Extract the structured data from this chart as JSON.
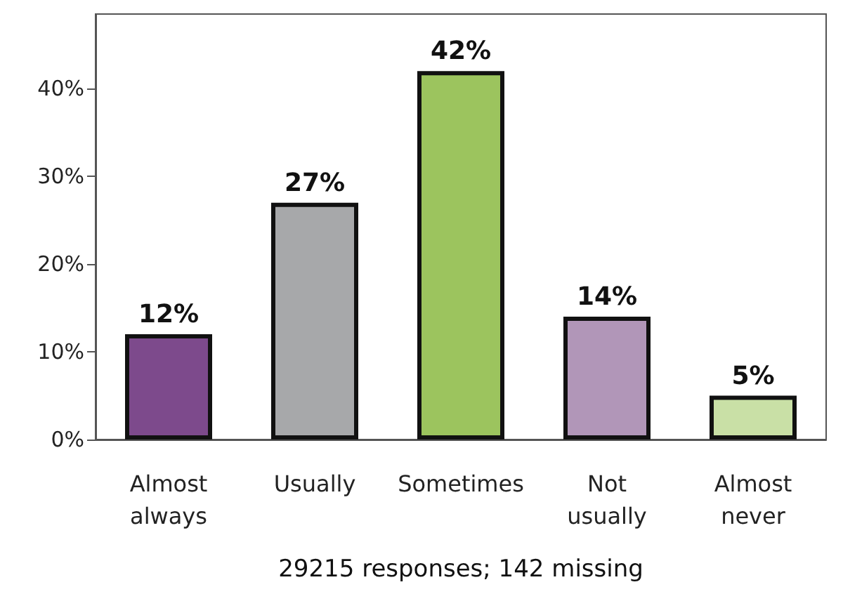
{
  "chart_data": {
    "type": "bar",
    "xlabel": "29215 responses; 142 missing",
    "categories": [
      "Almost always",
      "Usually",
      "Sometimes",
      "Not usually",
      "Almost never"
    ],
    "values": [
      12,
      27,
      42,
      14,
      5
    ],
    "colors": [
      "#7d4a8c",
      "#a7a8aa",
      "#9cc45e",
      "#b196b8",
      "#c9e0a6"
    ],
    "value_labels": [
      "12%",
      "27%",
      "42%",
      "14%",
      "5%"
    ],
    "ylim": [
      0,
      48.5
    ],
    "yticks": [
      {
        "value": 0,
        "label": "0%"
      },
      {
        "value": 10,
        "label": "10%"
      },
      {
        "value": 20,
        "label": "20%"
      },
      {
        "value": 30,
        "label": "30%"
      },
      {
        "value": 40,
        "label": "40%"
      }
    ],
    "grid": false
  }
}
